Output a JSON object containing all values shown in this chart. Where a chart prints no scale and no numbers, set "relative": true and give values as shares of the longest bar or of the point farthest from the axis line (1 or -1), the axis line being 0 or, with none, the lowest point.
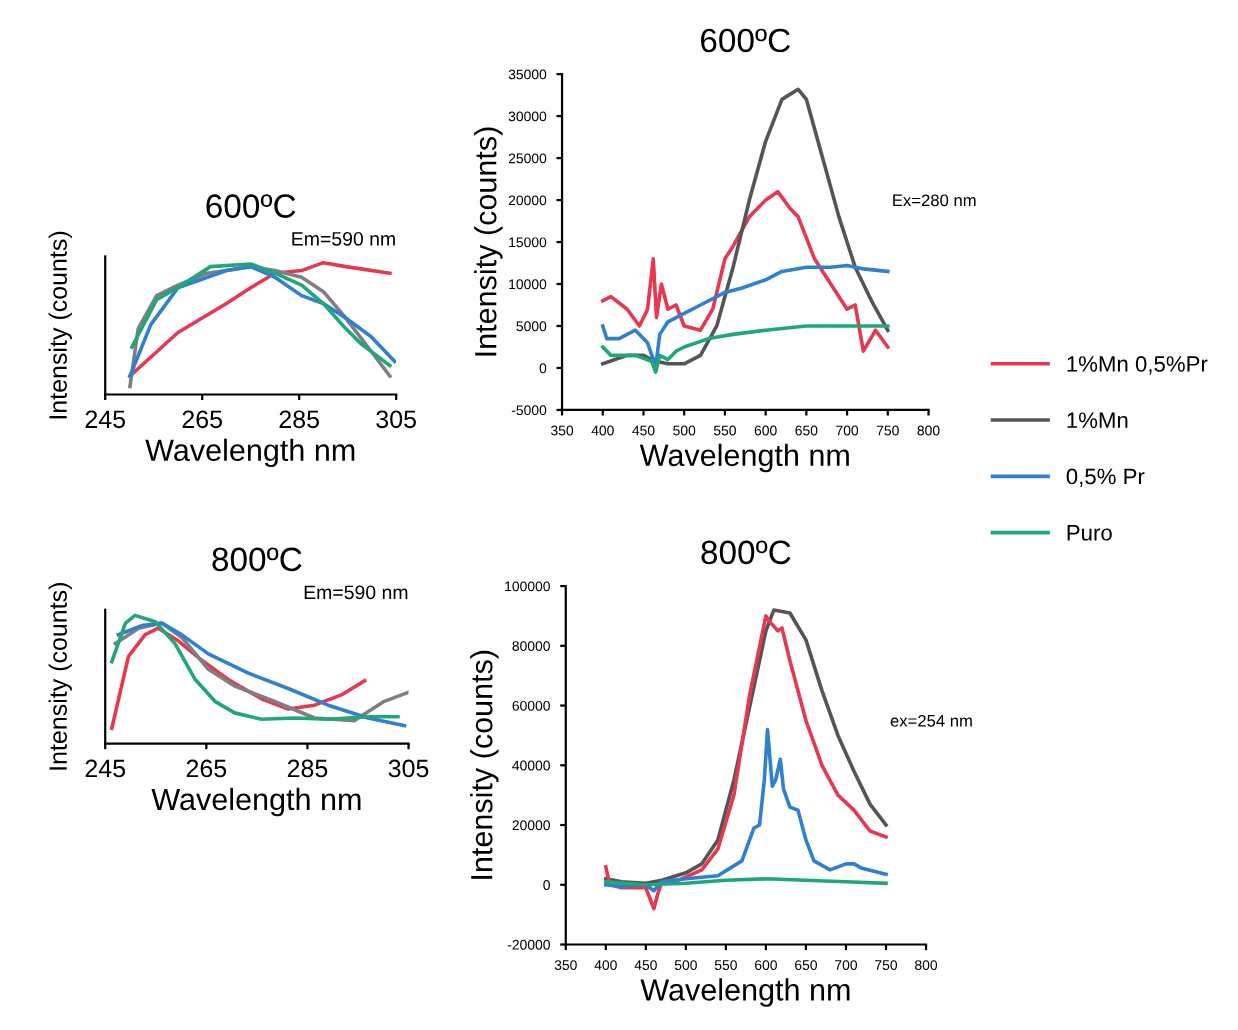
{
  "chart_data": [
    {
      "type": "line",
      "title": "600ºC",
      "xlabel": "Wavelength nm",
      "ylabel": "Intensity (counts)",
      "annotations": [
        "Em=590 nm"
      ],
      "relative": true,
      "tick_labels": "x",
      "xlim": [
        245,
        305
      ],
      "xticks": [
        245,
        265,
        285,
        305
      ],
      "series": [
        {
          "color": "#e8384f",
          "x": [
            250.1,
            260,
            270,
            275,
            280,
            285.5,
            290,
            294.6,
            303.7
          ],
          "values": [
            0.14,
            0.47,
            0.69,
            0.81,
            0.92,
            0.94,
            1.0,
            0.97,
            0.92
          ]
        },
        {
          "color": "#7f7f7f",
          "x": [
            250.1,
            251.8,
            255.6,
            260,
            266,
            270,
            275,
            280,
            285.5,
            290,
            294.6,
            299.8,
            303.7
          ],
          "values": [
            0.06,
            0.5,
            0.75,
            0.83,
            0.92,
            0.94,
            0.97,
            0.94,
            0.89,
            0.78,
            0.58,
            0.33,
            0.14
          ]
        },
        {
          "color": "#2f80d0",
          "x": [
            250.1,
            254.4,
            260,
            270,
            275,
            280,
            285.5,
            290,
            294.6,
            299.8,
            304.7
          ],
          "values": [
            0.14,
            0.53,
            0.81,
            0.94,
            0.97,
            0.89,
            0.75,
            0.69,
            0.58,
            0.44,
            0.25
          ]
        },
        {
          "color": "#1fa77a",
          "x": [
            250.5,
            255.6,
            260.8,
            266.7,
            275,
            280,
            285.5,
            290,
            294.6,
            297.9,
            303.7
          ],
          "values": [
            0.36,
            0.72,
            0.83,
            0.97,
            0.99,
            0.92,
            0.83,
            0.69,
            0.5,
            0.38,
            0.22
          ]
        }
      ]
    },
    {
      "type": "line",
      "title": "600ºC",
      "xlabel": "Wavelength nm",
      "ylabel": "Intensity (counts)",
      "annotations": [
        "Ex=280 nm"
      ],
      "legend": "right",
      "xlim": [
        350,
        800
      ],
      "xticks": [
        350,
        400,
        450,
        500,
        550,
        600,
        650,
        700,
        750,
        800
      ],
      "ylim": [
        -5000,
        35000
      ],
      "yticks": [
        -5000,
        0,
        5000,
        10000,
        15000,
        20000,
        25000,
        30000,
        35000
      ],
      "series": [
        {
          "name": "1%Mn 0,5%Pr",
          "color": "#e8384f",
          "x": [
            400,
            410,
            430,
            445,
            455,
            462,
            466,
            472,
            480,
            490,
            500,
            520,
            535,
            550,
            560,
            580,
            600,
            615,
            630,
            640,
            660,
            680,
            700,
            710,
            720,
            735,
            750
          ],
          "values": [
            8000,
            8500,
            7000,
            5000,
            7000,
            13000,
            6000,
            10000,
            7000,
            7500,
            5000,
            4500,
            7000,
            13000,
            14500,
            18000,
            20000,
            21000,
            19000,
            18000,
            13000,
            10000,
            7000,
            7500,
            2000,
            4500,
            2500
          ]
        },
        {
          "name": "1%Mn",
          "color": "#555555",
          "x": [
            400,
            430,
            450,
            460,
            470,
            480,
            500,
            520,
            540,
            560,
            580,
            600,
            620,
            640,
            650,
            670,
            690,
            710,
            730,
            750
          ],
          "values": [
            500,
            1500,
            1500,
            1000,
            700,
            500,
            500,
            1500,
            5000,
            12000,
            20000,
            27000,
            32000,
            33200,
            32000,
            25000,
            18000,
            12000,
            8000,
            4500
          ]
        },
        {
          "name": "0,5% Pr",
          "color": "#2f80d0",
          "x": [
            400,
            405,
            420,
            440,
            455,
            465,
            470,
            480,
            500,
            520,
            550,
            570,
            600,
            620,
            650,
            680,
            700,
            720,
            750
          ],
          "values": [
            5000,
            3500,
            3500,
            4500,
            3000,
            200,
            4000,
            5500,
            6500,
            7500,
            9000,
            9500,
            10500,
            11500,
            12000,
            12000,
            12200,
            11800,
            11500
          ]
        },
        {
          "name": "Puro",
          "color": "#1fa77a",
          "x": [
            400,
            410,
            440,
            460,
            465,
            470,
            480,
            490,
            500,
            530,
            560,
            600,
            650,
            700,
            750
          ],
          "values": [
            2500,
            1500,
            1500,
            800,
            -500,
            1500,
            1000,
            2000,
            2500,
            3500,
            4000,
            4500,
            5000,
            5000,
            5000
          ]
        }
      ]
    },
    {
      "type": "line",
      "title": "800ºC",
      "xlabel": "Wavelength nm",
      "ylabel": "Intensity (counts)",
      "annotations": [
        "Em=590 nm"
      ],
      "relative": true,
      "tick_labels": "x",
      "xlim": [
        245,
        305
      ],
      "xticks": [
        245,
        265,
        285,
        305
      ],
      "series": [
        {
          "color": "#e8384f",
          "x": [
            246.3,
            249.6,
            252.9,
            255.5,
            259.5,
            264.1,
            269.3,
            275.9,
            281.2,
            286.4,
            291.7,
            296.3
          ],
          "values": [
            0.12,
            0.68,
            0.85,
            0.9,
            0.8,
            0.65,
            0.5,
            0.35,
            0.27,
            0.3,
            0.38,
            0.49
          ]
        },
        {
          "color": "#7f7f7f",
          "x": [
            247,
            251.6,
            256.2,
            260.1,
            265.4,
            270.6,
            278.5,
            286.4,
            294.3,
            300.2,
            305
          ],
          "values": [
            0.78,
            0.9,
            0.94,
            0.83,
            0.58,
            0.45,
            0.33,
            0.2,
            0.18,
            0.33,
            0.4
          ]
        },
        {
          "color": "#2f80d0",
          "x": [
            247.6,
            252.2,
            256.2,
            260.1,
            265.4,
            273.3,
            281.2,
            289.1,
            297,
            304.2
          ],
          "values": [
            0.85,
            0.92,
            0.94,
            0.85,
            0.7,
            0.55,
            0.43,
            0.3,
            0.2,
            0.14
          ]
        },
        {
          "color": "#1fa77a",
          "x": [
            246.3,
            249,
            250.9,
            254.9,
            258.8,
            262.8,
            266.7,
            270.6,
            275.9,
            282.4,
            289.1,
            297,
            302.9
          ],
          "values": [
            0.64,
            0.94,
            1.0,
            0.95,
            0.78,
            0.5,
            0.33,
            0.24,
            0.19,
            0.2,
            0.19,
            0.21,
            0.21
          ]
        }
      ]
    },
    {
      "type": "line",
      "title": "800ºC",
      "xlabel": "Wavelength nm",
      "ylabel": "Intensity (counts)",
      "annotations": [
        "ex=254 nm"
      ],
      "xlim": [
        350,
        800
      ],
      "xticks": [
        350,
        400,
        450,
        500,
        550,
        600,
        650,
        700,
        750,
        800
      ],
      "ylim": [
        -20000,
        100000
      ],
      "yticks": [
        -20000,
        0,
        20000,
        40000,
        60000,
        80000,
        100000
      ],
      "series": [
        {
          "color": "#555555",
          "x": [
            400,
            420,
            450,
            470,
            500,
            520,
            540,
            560,
            580,
            600,
            610,
            630,
            650,
            670,
            690,
            710,
            730,
            750
          ],
          "values": [
            2000,
            1000,
            500,
            1500,
            4000,
            7000,
            15000,
            35000,
            60000,
            85000,
            92000,
            91000,
            82000,
            65000,
            50000,
            38000,
            27000,
            20000
          ]
        },
        {
          "color": "#e8384f",
          "x": [
            400,
            405,
            420,
            450,
            460,
            465,
            470,
            490,
            520,
            540,
            560,
            580,
            600,
            605,
            615,
            620,
            630,
            650,
            670,
            690,
            710,
            730,
            750
          ],
          "values": [
            6000,
            0,
            -1000,
            -1000,
            -8000,
            -3000,
            1000,
            1500,
            5000,
            12000,
            30000,
            64000,
            90000,
            88000,
            85000,
            86000,
            75000,
            55000,
            40000,
            30000,
            25000,
            18000,
            16000
          ]
        },
        {
          "color": "#2f80d0",
          "x": [
            400,
            420,
            450,
            460,
            470,
            500,
            540,
            570,
            585,
            592,
            598,
            602,
            608,
            612,
            618,
            622,
            630,
            640,
            650,
            660,
            680,
            700,
            710,
            720,
            750
          ],
          "values": [
            0,
            -500,
            0,
            -2000,
            1000,
            2000,
            3000,
            8000,
            19000,
            20000,
            35000,
            52000,
            33000,
            35000,
            42000,
            32000,
            26000,
            25000,
            15000,
            8000,
            5000,
            7000,
            7000,
            5500,
            3500
          ]
        },
        {
          "color": "#1fa77a",
          "x": [
            400,
            450,
            500,
            550,
            600,
            650,
            700,
            750
          ],
          "values": [
            1000,
            0,
            500,
            1500,
            2000,
            1500,
            1000,
            500
          ]
        }
      ]
    }
  ]
}
